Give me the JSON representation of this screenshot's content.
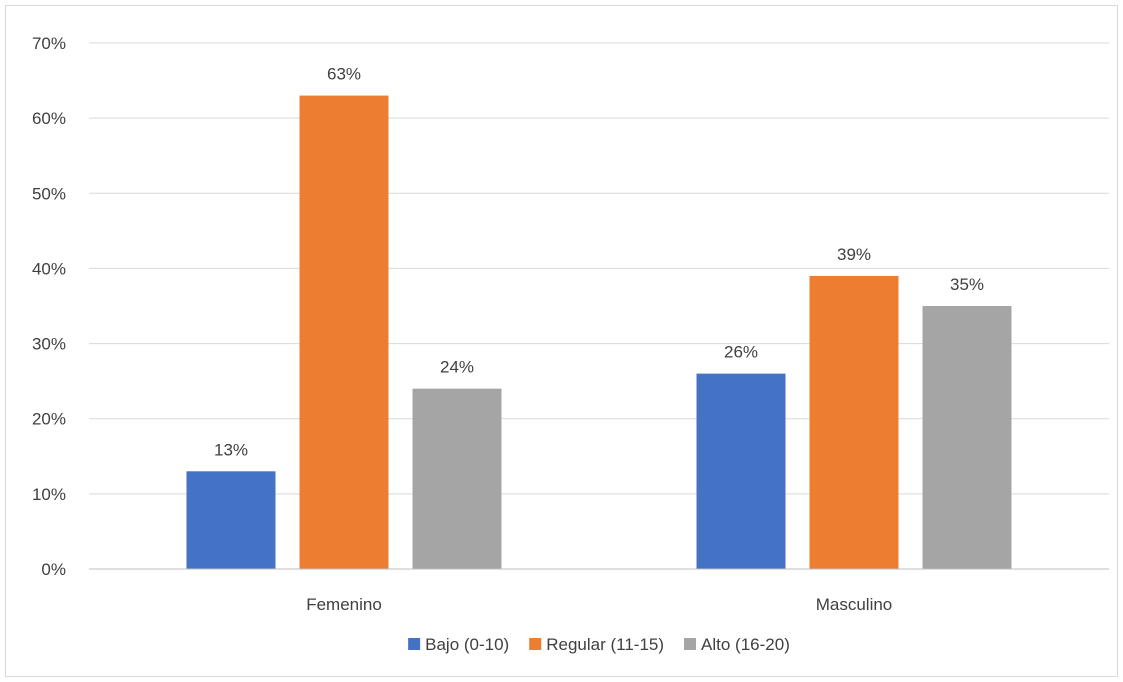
{
  "chart_data": {
    "type": "bar",
    "title": "",
    "xlabel": "",
    "ylabel": "",
    "categories": [
      "Femenino",
      "Masculino"
    ],
    "series": [
      {
        "name": "Bajo (0-10)",
        "values": [
          13,
          26
        ],
        "labels": [
          "13%",
          "26%"
        ],
        "color": "#4472C4"
      },
      {
        "name": "Regular (11-15)",
        "values": [
          63,
          39
        ],
        "labels": [
          "63%",
          "39%"
        ],
        "color": "#ED7D31"
      },
      {
        "name": "Alto (16-20)",
        "values": [
          24,
          35
        ],
        "labels": [
          "24%",
          "35%"
        ],
        "color": "#A5A5A5"
      }
    ],
    "ylim": [
      0,
      70
    ],
    "ytick_values": [
      0,
      10,
      20,
      30,
      40,
      50,
      60,
      70
    ],
    "yticks": [
      "0%",
      "10%",
      "20%",
      "30%",
      "40%",
      "50%",
      "60%",
      "70%"
    ],
    "grid": true,
    "legend_position": "bottom",
    "gridline_color": "#d9d9d9",
    "text_color": "#404040"
  }
}
